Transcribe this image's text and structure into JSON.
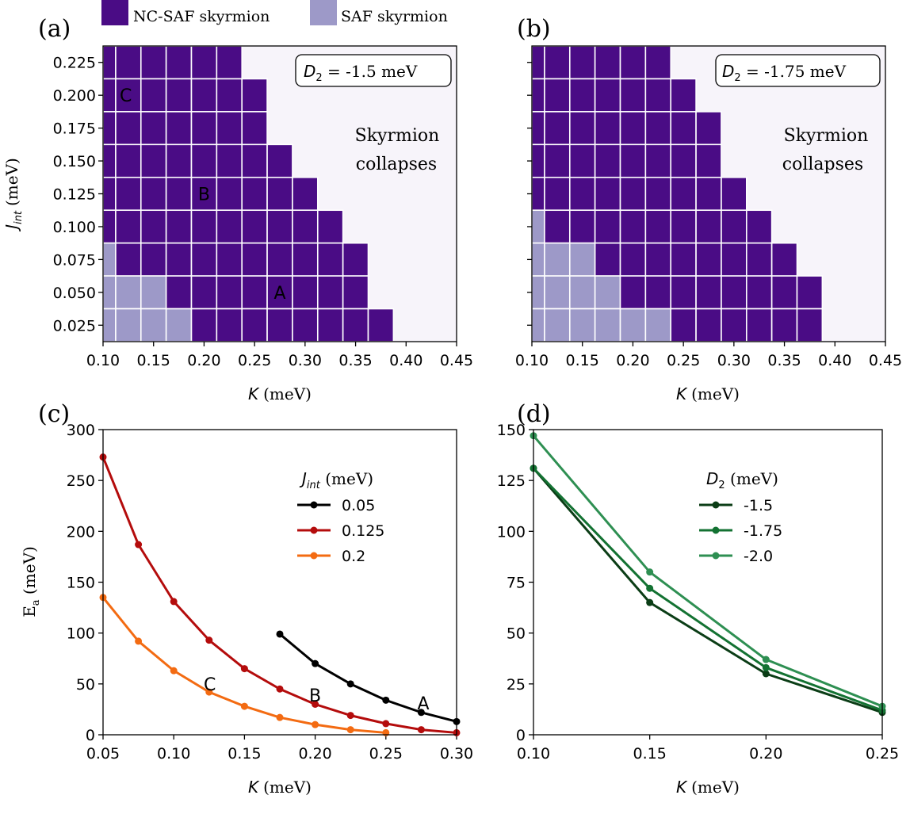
{
  "figure": {
    "colors": {
      "ncsaf": "#4a0c85",
      "saf": "#9d99c8",
      "collapse": "#f7f4fa",
      "j005": "#000000",
      "j0125": "#b40c0c",
      "j02": "#f36b12",
      "d15": "#0b3d16",
      "d175": "#137232",
      "d20": "#2e8f52"
    },
    "top_legend": {
      "ncsaf_label": "NC-SAF skyrmion",
      "saf_label": "SAF skyrmion"
    }
  },
  "chart_data": [
    {
      "id": "a",
      "panel_label": "(a)",
      "type": "heatmap",
      "xlabel_sym": "K",
      "xlabel_unit": "(meV)",
      "ylabel_sym": "J",
      "ylabel_sub": "int",
      "ylabel_unit": "(meV)",
      "xlim": [
        0.1,
        0.45
      ],
      "x_ticks": [
        "0.10",
        "0.15",
        "0.20",
        "0.25",
        "0.30",
        "0.35",
        "0.40",
        "0.45"
      ],
      "y_ticks": [
        "0.025",
        "0.050",
        "0.075",
        "0.100",
        "0.125",
        "0.150",
        "0.175",
        "0.200",
        "0.225"
      ],
      "k_step": 0.025,
      "k_first_cell_end": 0.1125,
      "rows": [
        {
          "j": "0.225",
          "saf_until": 0.1,
          "end": 0.2375
        },
        {
          "j": "0.200",
          "saf_until": 0.1,
          "end": 0.2625
        },
        {
          "j": "0.175",
          "saf_until": 0.1,
          "end": 0.2625
        },
        {
          "j": "0.150",
          "saf_until": 0.1,
          "end": 0.2875
        },
        {
          "j": "0.125",
          "saf_until": 0.1,
          "end": 0.3125
        },
        {
          "j": "0.100",
          "saf_until": 0.1,
          "end": 0.3375
        },
        {
          "j": "0.075",
          "saf_until": 0.1125,
          "end": 0.3625
        },
        {
          "j": "0.050",
          "saf_until": 0.1625,
          "end": 0.3625
        },
        {
          "j": "0.025",
          "saf_until": 0.1875,
          "end": 0.3875
        }
      ],
      "box_sym": "D",
      "box_sub": "2",
      "box_value": " = -1.5 meV",
      "collapse_line1": "Skyrmion",
      "collapse_line2": "collapses",
      "markers": [
        {
          "text": "C",
          "k": 0.1225,
          "j": 0.2
        },
        {
          "text": "B",
          "k": 0.2,
          "j": 0.125
        },
        {
          "text": "A",
          "k": 0.275,
          "j": 0.05
        }
      ]
    },
    {
      "id": "b",
      "panel_label": "(b)",
      "type": "heatmap",
      "xlabel_sym": "K",
      "xlabel_unit": "(meV)",
      "xlim": [
        0.1,
        0.45
      ],
      "x_ticks": [
        "0.10",
        "0.15",
        "0.20",
        "0.25",
        "0.30",
        "0.35",
        "0.40",
        "0.45"
      ],
      "k_step": 0.025,
      "k_first_cell_end": 0.1125,
      "rows": [
        {
          "j": "0.225",
          "saf_until": 0.1,
          "end": 0.2375
        },
        {
          "j": "0.200",
          "saf_until": 0.1,
          "end": 0.2625
        },
        {
          "j": "0.175",
          "saf_until": 0.1,
          "end": 0.2875
        },
        {
          "j": "0.150",
          "saf_until": 0.1,
          "end": 0.2875
        },
        {
          "j": "0.125",
          "saf_until": 0.1,
          "end": 0.3125
        },
        {
          "j": "0.100",
          "saf_until": 0.1125,
          "end": 0.3375
        },
        {
          "j": "0.075",
          "saf_until": 0.1625,
          "end": 0.3625
        },
        {
          "j": "0.050",
          "saf_until": 0.1875,
          "end": 0.3875
        },
        {
          "j": "0.025",
          "saf_until": 0.2375,
          "end": 0.3875
        }
      ],
      "box_sym": "D",
      "box_sub": "2",
      "box_value": " = -1.75 meV",
      "collapse_line1": "Skyrmion",
      "collapse_line2": "collapses"
    },
    {
      "id": "c",
      "panel_label": "(c)",
      "type": "line",
      "xlabel_sym": "K",
      "xlabel_unit": "(meV)",
      "ylabel_main": "E",
      "ylabel_sub": "a",
      "ylabel_unit": " (meV)",
      "xlim": [
        0.05,
        0.3
      ],
      "ylim": [
        0,
        300
      ],
      "x_ticks": [
        "0.05",
        "0.10",
        "0.15",
        "0.20",
        "0.25",
        "0.30"
      ],
      "y_ticks": [
        "0",
        "50",
        "100",
        "150",
        "200",
        "250",
        "300"
      ],
      "legend_title_sym": "J",
      "legend_title_sub": "int",
      "legend_title_unit": " (meV)",
      "series": [
        {
          "name": "0.05",
          "color": "#000000",
          "x": [
            0.175,
            0.2,
            0.225,
            0.25,
            0.275,
            0.3
          ],
          "y": [
            99,
            70,
            50,
            34,
            22,
            13
          ]
        },
        {
          "name": "0.125",
          "color": "#b40c0c",
          "x": [
            0.05,
            0.075,
            0.1,
            0.125,
            0.15,
            0.175,
            0.2,
            0.225,
            0.25,
            0.275,
            0.3
          ],
          "y": [
            273,
            187,
            131,
            93,
            65,
            45,
            30,
            19,
            11,
            5,
            2
          ]
        },
        {
          "name": "0.2",
          "color": "#f36b12",
          "x": [
            0.05,
            0.075,
            0.1,
            0.125,
            0.15,
            0.175,
            0.2,
            0.225,
            0.25
          ],
          "y": [
            135,
            92,
            63,
            42,
            28,
            17,
            10,
            5,
            2
          ]
        }
      ],
      "markers": [
        {
          "text": "C",
          "k": 0.1255,
          "e": 50
        },
        {
          "text": "B",
          "k": 0.2,
          "e": 39
        },
        {
          "text": "A",
          "k": 0.2765,
          "e": 31
        }
      ]
    },
    {
      "id": "d",
      "panel_label": "(d)",
      "type": "line",
      "xlabel_sym": "K",
      "xlabel_unit": "(meV)",
      "xlim": [
        0.1,
        0.25
      ],
      "ylim": [
        0,
        150
      ],
      "x_ticks": [
        "0.10",
        "0.15",
        "0.20",
        "0.25"
      ],
      "y_ticks": [
        "0",
        "25",
        "50",
        "75",
        "100",
        "125",
        "150"
      ],
      "legend_title_sym": "D",
      "legend_title_sub": "2",
      "legend_title_unit": " (meV)",
      "series": [
        {
          "name": "-1.5",
          "color": "#0b3d16",
          "x": [
            0.1,
            0.15,
            0.2,
            0.25
          ],
          "y": [
            131,
            65,
            30,
            11
          ]
        },
        {
          "name": "-1.75",
          "color": "#137232",
          "x": [
            0.1,
            0.15,
            0.2,
            0.25
          ],
          "y": [
            131,
            72,
            33,
            12
          ]
        },
        {
          "name": "-2.0",
          "color": "#2e8f52",
          "x": [
            0.1,
            0.15,
            0.2,
            0.25
          ],
          "y": [
            147,
            80,
            37,
            14
          ]
        }
      ]
    }
  ]
}
